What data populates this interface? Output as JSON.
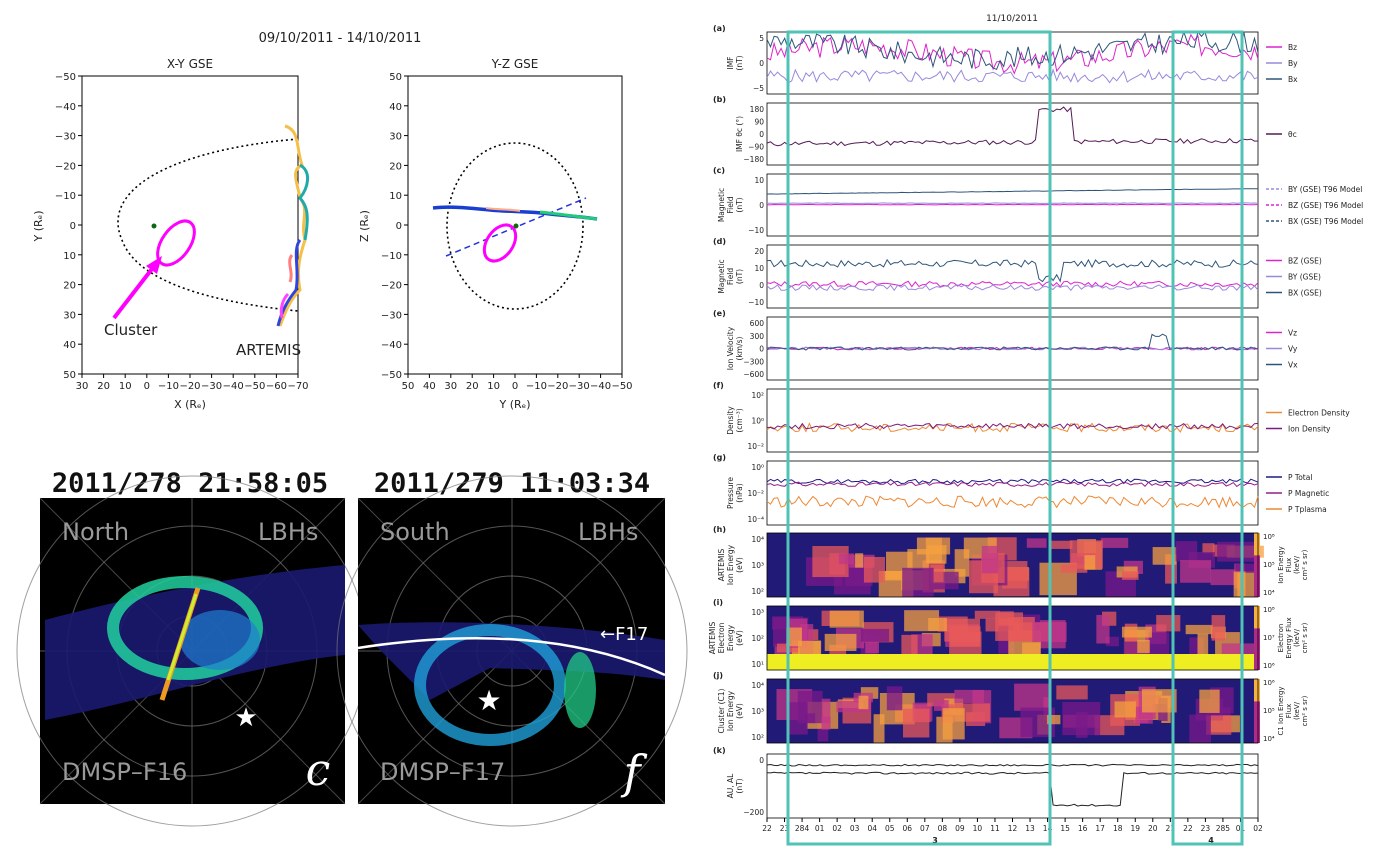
{
  "orbit": {
    "title": "09/10/2011 - 14/10/2011",
    "xy": {
      "title": "X-Y GSE",
      "xlabel": "X (Rₑ)",
      "ylabel": "Y (Rₑ)",
      "xticks": [
        "30",
        "20",
        "10",
        "0",
        "−10",
        "−20",
        "−30",
        "−40",
        "−50",
        "−60",
        "−70"
      ],
      "yticks": [
        "−50",
        "−40",
        "−30",
        "−20",
        "−10",
        "0",
        "10",
        "20",
        "30",
        "40",
        "50"
      ]
    },
    "yz": {
      "title": "Y-Z GSE",
      "xlabel": "Y (Rₑ)",
      "ylabel": "Z (Rₑ)",
      "xticks": [
        "50",
        "40",
        "30",
        "20",
        "10",
        "0",
        "−10",
        "−20",
        "−30",
        "−40",
        "−50"
      ],
      "yticks": [
        "50",
        "40",
        "30",
        "20",
        "10",
        "0",
        "−10",
        "−20",
        "−30",
        "−40",
        "−50"
      ]
    },
    "labels": {
      "cluster": "Cluster",
      "artemis": "ARTEMIS"
    },
    "colors": {
      "cluster": "#ff00ff",
      "dashed": "#2233dd"
    }
  },
  "dmsp": {
    "left": {
      "title": "2011/278  21:58:05",
      "hemi": "North",
      "band": "LBHs",
      "sat": "DMSP–F16",
      "letter": "c"
    },
    "right": {
      "title": "2011/279  11:03:34",
      "hemi": "South",
      "band": "LBHs",
      "sat": "DMSP–F17",
      "letter": "f",
      "track": "←F17"
    }
  },
  "ts": {
    "date": "11/10/2011",
    "highlight_color": "#4fc3b6",
    "x_ticks": [
      "22",
      "23",
      "284",
      "01",
      "02",
      "03",
      "04",
      "05",
      "06",
      "07",
      "08",
      "09",
      "10",
      "11",
      "12",
      "13",
      "14",
      "15",
      "16",
      "17",
      "18",
      "19",
      "20",
      "21",
      "22",
      "23",
      "285",
      "01",
      "02"
    ],
    "x_sub": [
      "3",
      "4"
    ],
    "panels": [
      {
        "tag": "(a)",
        "ylabel": [
          "IMF",
          "(nT)"
        ],
        "yticks": [
          "5",
          "0",
          "−5"
        ],
        "legend": [
          {
            "name": "Bz",
            "color": "#dd22cc"
          },
          {
            "name": "By",
            "color": "#9988dd"
          },
          {
            "name": "Bx",
            "color": "#2e5578"
          }
        ]
      },
      {
        "tag": "(b)",
        "ylabel": [
          "IMF θc (°)"
        ],
        "yticks": [
          "180",
          "90",
          "0",
          "−90",
          "−180"
        ],
        "legend": [
          {
            "name": "θc",
            "color": "#551a55"
          }
        ]
      },
      {
        "tag": "(c)",
        "ylabel": [
          "Magnetic",
          "Field",
          "(nT)"
        ],
        "yticks": [
          "10",
          "0",
          "−10"
        ],
        "legend": [
          {
            "name": "BY (GSE) T96 Model",
            "color": "#9988dd"
          },
          {
            "name": "BZ (GSE) T96 Model",
            "color": "#dd22cc"
          },
          {
            "name": "BX (GSE) T96 Model",
            "color": "#2e5578"
          }
        ]
      },
      {
        "tag": "(d)",
        "ylabel": [
          "Magnetic",
          "Field",
          "(nT)"
        ],
        "yticks": [
          "20",
          "10",
          "0",
          "−10"
        ],
        "legend": [
          {
            "name": "BZ (GSE)",
            "color": "#dd22cc"
          },
          {
            "name": "BY (GSE)",
            "color": "#9988dd"
          },
          {
            "name": "BX (GSE)",
            "color": "#2e5578"
          }
        ]
      },
      {
        "tag": "(e)",
        "ylabel": [
          "Ion Velocity",
          "(km/s)"
        ],
        "yticks": [
          "600",
          "300",
          "0",
          "−300",
          "−600"
        ],
        "legend": [
          {
            "name": "Vz",
            "color": "#dd22cc"
          },
          {
            "name": "Vy",
            "color": "#9988dd"
          },
          {
            "name": "Vx",
            "color": "#2e5578"
          }
        ]
      },
      {
        "tag": "(f)",
        "ylabel": [
          "Density",
          "(cm⁻³)"
        ],
        "yticks": [
          "10²",
          "10⁰",
          "10⁻²"
        ],
        "legend": [
          {
            "name": "Electron Density",
            "color": "#ee8833"
          },
          {
            "name": "Ion Density",
            "color": "#7a1a7a"
          }
        ]
      },
      {
        "tag": "(g)",
        "ylabel": [
          "Pressure",
          "(nPa)"
        ],
        "yticks": [
          "10⁰",
          "10⁻²",
          "10⁻⁴"
        ],
        "legend": [
          {
            "name": "P Total",
            "color": "#1a1a88"
          },
          {
            "name": "P Magnetic",
            "color": "#991a88"
          },
          {
            "name": "P Tplasma",
            "color": "#ee8833"
          }
        ]
      },
      {
        "tag": "(h)",
        "ylabel": [
          "ARTEMIS",
          "Ion Energy",
          "(eV)"
        ],
        "yticks": [
          "10⁴",
          "10³",
          "10²"
        ],
        "cbar": [
          "10⁸",
          "10⁵",
          "10⁴"
        ],
        "clabel": [
          "Ion Energy",
          "Flux",
          "(keV/",
          "cm² s sr)"
        ]
      },
      {
        "tag": "(i)",
        "ylabel": [
          "ARTEMIS",
          "Electron",
          "Energy",
          "(eV)"
        ],
        "yticks": [
          "10³",
          "10²",
          "10¹"
        ],
        "cbar": [
          "10⁸",
          "10⁷",
          "10⁶"
        ],
        "clabel": [
          "Electron",
          "Energy Flux",
          "(keV/",
          "cm² s sr)"
        ]
      },
      {
        "tag": "(j)",
        "ylabel": [
          "Cluster (C1)",
          "Ion Energy",
          "(eV)"
        ],
        "yticks": [
          "10⁴",
          "10³",
          "10²"
        ],
        "cbar": [
          "10⁶",
          "10⁵",
          "10⁴"
        ],
        "clabel": [
          "C1 Ion Energy",
          "Flux",
          "(keV/",
          "cm² s sr)"
        ]
      },
      {
        "tag": "(k)",
        "ylabel": [
          "AU, AL",
          "(nT)"
        ],
        "yticks": [
          "0",
          "−200"
        ]
      }
    ]
  },
  "chart_data": [
    {
      "type": "line",
      "title": "X-Y GSE",
      "xlabel": "X (Rₑ)",
      "ylabel": "Y (Rₑ)",
      "xlim": [
        30,
        -70
      ],
      "ylim": [
        50,
        -50
      ],
      "series": [
        {
          "name": "Cluster",
          "shape": "ellipse",
          "center": [
            -4,
            4
          ],
          "radii": [
            7,
            12
          ]
        }
      ]
    },
    {
      "type": "line",
      "title": "Y-Z GSE",
      "xlabel": "Y (Rₑ)",
      "ylabel": "Z (Rₑ)",
      "xlim": [
        50,
        -50
      ],
      "ylim": [
        -50,
        50
      ],
      "series": [
        {
          "name": "Cluster",
          "shape": "ellipse",
          "center": [
            -3,
            -7
          ],
          "radii": [
            7,
            10
          ]
        }
      ]
    },
    {
      "type": "line",
      "title": "11/10/2011",
      "xlabel": "",
      "ylabel": "AU, AL (nT)",
      "ylim": [
        -300,
        100
      ],
      "series": [
        {
          "x": [
            14,
            15,
            16,
            17,
            18,
            19,
            20,
            21
          ],
          "values": [
            50,
            20,
            -240,
            -180,
            -60,
            -40,
            -20,
            0
          ]
        }
      ]
    }
  ]
}
